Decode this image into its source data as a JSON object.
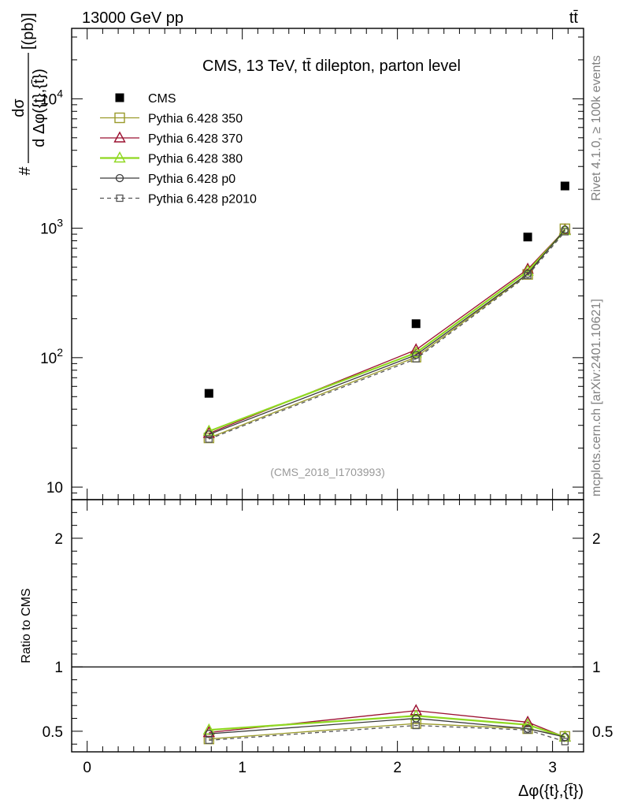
{
  "header": {
    "left": "13000 GeV pp",
    "right": "tt̄"
  },
  "side_labels": {
    "rivet": "Rivet 4.1.0, ≥ 100k events",
    "mcplots": "mcplots.cern.ch [arXiv:2401.10621]"
  },
  "chart_data": [
    {
      "type": "line",
      "title": "CMS, 13 TeV, tt̄ dilepton, parton level",
      "watermark": "(CMS_2018_I1703993)",
      "ylabel": "#dσ/dΔφ({t},{t̄})[(pb)]",
      "ylabel_num": "dσ",
      "ylabel_den": "d Δφ({t},{t̄})",
      "ylabel_prefix": "#",
      "ylabel_suffix": "[(pb)]",
      "yscale": "log",
      "ylim": [
        8,
        35000
      ],
      "xlim": [
        -0.1,
        3.2
      ],
      "ytick_labels": [
        "10",
        "10^2",
        "10^3",
        "10^4"
      ],
      "legend_position": "top-left",
      "x": [
        0.785,
        2.12,
        2.84,
        3.08
      ],
      "series": [
        {
          "name": "CMS",
          "values": [
            53,
            183,
            855,
            2120
          ],
          "color": "#000000",
          "marker": "filled-square",
          "line": "none"
        },
        {
          "name": "Pythia 6.428 350",
          "values": [
            24,
            101,
            440,
            990
          ],
          "color": "#9a9a2a",
          "marker": "open-square",
          "line": "solid"
        },
        {
          "name": "Pythia 6.428 370",
          "values": [
            26,
            115,
            482,
            970
          ],
          "color": "#9b1030",
          "marker": "open-triangle",
          "line": "solid"
        },
        {
          "name": "Pythia 6.428 380",
          "values": [
            27,
            109,
            465,
            960
          ],
          "color": "#8fd820",
          "marker": "open-triangle",
          "line": "solid"
        },
        {
          "name": "Pythia 6.428 p0",
          "values": [
            25.5,
            105,
            445,
            975
          ],
          "color": "#3a3a3a",
          "marker": "open-circle",
          "line": "solid"
        },
        {
          "name": "Pythia 6.428 p2010",
          "values": [
            23.5,
            98,
            432,
            940
          ],
          "color": "#555555",
          "marker": "open-square-small",
          "line": "dashed"
        }
      ]
    },
    {
      "type": "line",
      "ylabel": "Ratio to CMS",
      "xlabel": "Δφ({t},{t̄})",
      "ylim": [
        0.34,
        2.3
      ],
      "xlim": [
        -0.1,
        3.2
      ],
      "yticks": [
        0.5,
        1,
        2
      ],
      "ytick_labels": [
        "0.5",
        "1",
        "2"
      ],
      "xticks": [
        0,
        1,
        2,
        3
      ],
      "xtick_labels": [
        "0",
        "1",
        "2",
        "3"
      ],
      "reference_line": 1,
      "x": [
        0.785,
        2.12,
        2.84,
        3.08
      ],
      "series": [
        {
          "name": "Pythia 6.428 350",
          "values": [
            0.44,
            0.56,
            0.52,
            0.46
          ],
          "color": "#9a9a2a",
          "marker": "open-square",
          "line": "solid"
        },
        {
          "name": "Pythia 6.428 370",
          "values": [
            0.49,
            0.66,
            0.57,
            0.455
          ],
          "color": "#9b1030",
          "marker": "open-triangle",
          "line": "solid"
        },
        {
          "name": "Pythia 6.428 380",
          "values": [
            0.51,
            0.62,
            0.55,
            0.455
          ],
          "color": "#8fd820",
          "marker": "open-triangle",
          "line": "solid"
        },
        {
          "name": "Pythia 6.428 p0",
          "values": [
            0.48,
            0.6,
            0.52,
            0.455
          ],
          "color": "#3a3a3a",
          "marker": "open-circle",
          "line": "solid"
        },
        {
          "name": "Pythia 6.428 p2010",
          "values": [
            0.43,
            0.545,
            0.51,
            0.42
          ],
          "color": "#555555",
          "marker": "open-square-small",
          "line": "dashed"
        }
      ]
    }
  ]
}
